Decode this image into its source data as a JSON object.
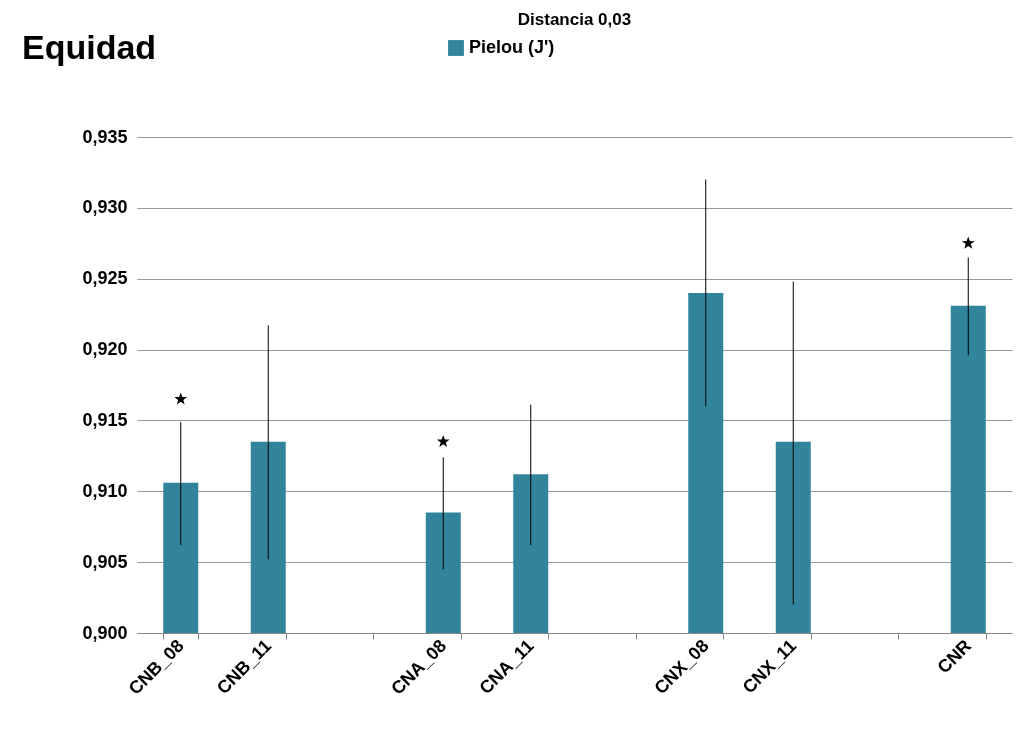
{
  "chart_data": {
    "type": "bar",
    "title": "Equidad",
    "subtitle": "Distancia 0,03",
    "categories": [
      "CNB_08",
      "CNB_11",
      null,
      "CNA_08",
      "CNA_11",
      null,
      "CNX_08",
      "CNX_11",
      null,
      "CNR"
    ],
    "series": [
      {
        "name": "Pielou (J')",
        "color": "#31849b",
        "values": [
          0.9106,
          0.9135,
          null,
          0.9085,
          0.9112,
          null,
          0.924,
          0.9135,
          null,
          0.9231
        ],
        "errors": [
          [
            0.9062,
            0.9149
          ],
          [
            0.9052,
            0.9217
          ],
          null,
          [
            0.9045,
            0.9124
          ],
          [
            0.9062,
            0.9161
          ],
          null,
          [
            0.916,
            0.932
          ],
          [
            0.902,
            0.9248
          ],
          null,
          [
            0.9196,
            0.9265
          ]
        ]
      },
      {
        "type": "scatter",
        "color": "#000000",
        "marker": "star",
        "x": [
          "CNB_08",
          "CNA_08",
          "CNR"
        ],
        "values": [
          0.9165,
          0.9135,
          0.9275
        ]
      }
    ],
    "ylim": [
      0.9,
      0.935
    ],
    "yticks": [
      {
        "value": 0.9,
        "label": "0,900"
      },
      {
        "value": 0.905,
        "label": "0,905"
      },
      {
        "value": 0.91,
        "label": "0,910"
      },
      {
        "value": 0.915,
        "label": "0,915"
      },
      {
        "value": 0.92,
        "label": "0,920"
      },
      {
        "value": 0.925,
        "label": "0,925"
      },
      {
        "value": 0.93,
        "label": "0,930"
      },
      {
        "value": 0.935,
        "label": "0,935"
      }
    ],
    "grid": "y",
    "legend": "top"
  }
}
